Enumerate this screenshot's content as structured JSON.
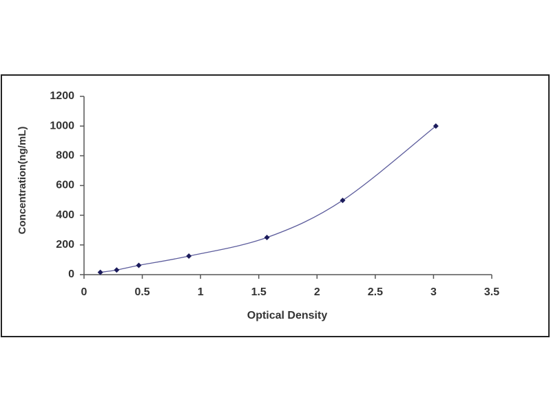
{
  "chart_data": {
    "type": "scatter",
    "x_label": "Optical Density",
    "y_label": "Concentration(ng/mL)",
    "x": [
      0.14,
      0.28,
      0.47,
      0.9,
      1.57,
      2.22,
      3.02
    ],
    "values": [
      15.6,
      31.25,
      62.5,
      125,
      250,
      500,
      1000
    ],
    "color": "#1c1c5c",
    "line_color": "#5c5c9c",
    "xlim": [
      0,
      3.5
    ],
    "xticks": [
      0,
      0.5,
      1,
      1.5,
      2,
      2.5,
      3,
      3.5
    ],
    "ylim": [
      0,
      1200
    ],
    "yticks": [
      0,
      200,
      400,
      600,
      800,
      1000,
      1200
    ],
    "fit_line": true
  }
}
